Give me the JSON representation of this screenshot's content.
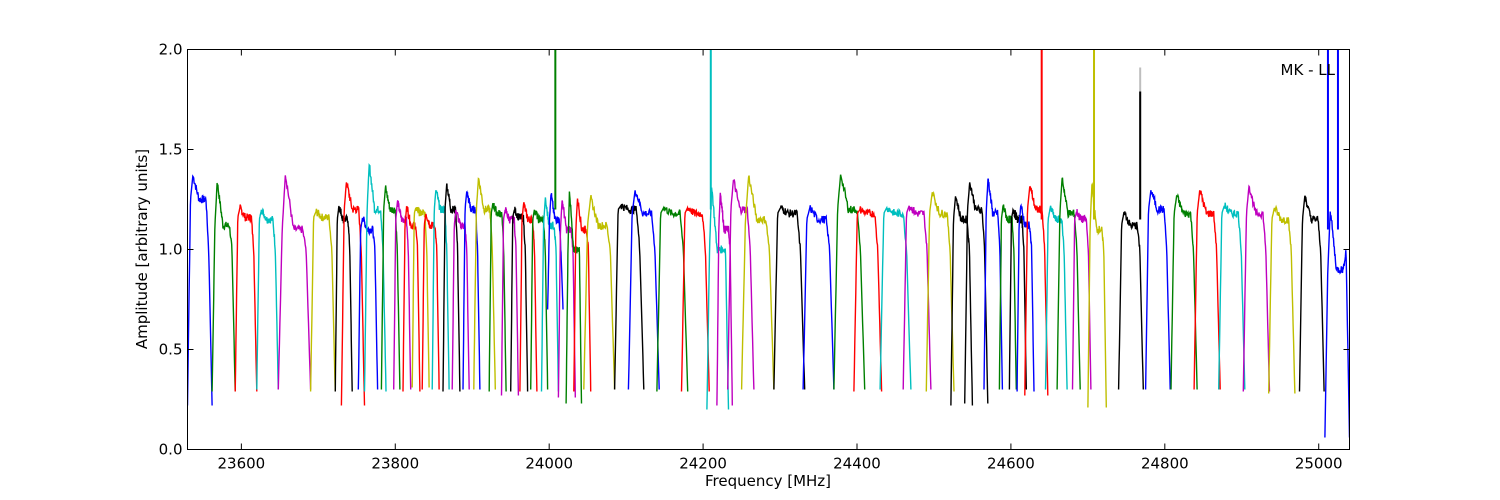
{
  "chart_data": {
    "type": "line",
    "title": "",
    "annotation": "MK - LL",
    "xlabel": "Frequency [MHz]",
    "ylabel": "Amplitude [arbitrary units]",
    "xlim": [
      23530,
      25040
    ],
    "ylim": [
      0.0,
      2.0
    ],
    "xticks": [
      23600,
      23800,
      24000,
      24200,
      24400,
      24600,
      24800,
      25000
    ],
    "yticks": [
      0.0,
      0.5,
      1.0,
      1.5,
      2.0
    ],
    "xtick_labels": [
      "23600",
      "23800",
      "24000",
      "24200",
      "24400",
      "24600",
      "24800",
      "25000"
    ],
    "ytick_labels": [
      "0.0",
      "0.5",
      "1.0",
      "1.5",
      "2.0"
    ],
    "grid": false,
    "legend": "none",
    "colors": [
      "#0000ff",
      "#008000",
      "#ff0000",
      "#00bfbf",
      "#bf00bf",
      "#bfbf00",
      "#000000"
    ],
    "segments": [
      {
        "start": 23530,
        "width": 32,
        "color": "#0000ff",
        "peak": 1.37,
        "mid": 1.25,
        "low": 0.22
      },
      {
        "start": 23562,
        "width": 30,
        "color": "#008000",
        "peak": 1.34,
        "mid": 1.12,
        "low": 0.29
      },
      {
        "start": 23592,
        "width": 28,
        "color": "#ff0000",
        "peak": 1.21,
        "mid": 1.16,
        "low": 0.29
      },
      {
        "start": 23620,
        "width": 28,
        "color": "#00bfbf",
        "peak": 1.2,
        "mid": 1.15,
        "low": 0.3
      },
      {
        "start": 23648,
        "width": 42,
        "color": "#bf00bf",
        "peak": 1.38,
        "mid": 1.1,
        "low": 0.3
      },
      {
        "start": 23690,
        "width": 32,
        "color": "#bfbf00",
        "peak": 1.19,
        "mid": 1.16,
        "low": 0.29
      },
      {
        "start": 23722,
        "width": 22,
        "color": "#000000",
        "peak": 1.22,
        "mid": 1.15,
        "low": 0.29
      },
      {
        "start": 23730,
        "width": 30,
        "color": "#ff0000",
        "peak": 1.34,
        "mid": 1.2,
        "low": 0.22
      },
      {
        "start": 23752,
        "width": 25,
        "color": "#0000ff",
        "peak": 1.16,
        "mid": 1.1,
        "low": 0.3
      },
      {
        "start": 23760,
        "width": 28,
        "color": "#00bfbf",
        "peak": 1.43,
        "mid": 1.2,
        "low": 0.29
      },
      {
        "start": 23782,
        "width": 24,
        "color": "#008000",
        "peak": 1.31,
        "mid": 1.2,
        "low": 0.3
      },
      {
        "start": 23798,
        "width": 22,
        "color": "#bf00bf",
        "peak": 1.24,
        "mid": 1.15,
        "low": 0.3
      },
      {
        "start": 23810,
        "width": 22,
        "color": "#ff0000",
        "peak": 1.22,
        "mid": 1.12,
        "low": 0.29
      },
      {
        "start": 23822,
        "width": 22,
        "color": "#bfbf00",
        "peak": 1.21,
        "mid": 1.18,
        "low": 0.31
      },
      {
        "start": 23835,
        "width": 22,
        "color": "#ff0000",
        "peak": 1.18,
        "mid": 1.12,
        "low": 0.3
      },
      {
        "start": 23848,
        "width": 22,
        "color": "#00bfbf",
        "peak": 1.3,
        "mid": 1.2,
        "low": 0.3
      },
      {
        "start": 23862,
        "width": 22,
        "color": "#000000",
        "peak": 1.33,
        "mid": 1.2,
        "low": 0.29
      },
      {
        "start": 23874,
        "width": 22,
        "color": "#bf00bf",
        "peak": 1.2,
        "mid": 1.12,
        "low": 0.3
      },
      {
        "start": 23888,
        "width": 22,
        "color": "#0000ff",
        "peak": 1.29,
        "mid": 1.2,
        "low": 0.3
      },
      {
        "start": 23902,
        "width": 28,
        "color": "#bfbf00",
        "peak": 1.36,
        "mid": 1.2,
        "low": 0.3
      },
      {
        "start": 23922,
        "width": 22,
        "color": "#008000",
        "peak": 1.23,
        "mid": 1.18,
        "low": 0.29
      },
      {
        "start": 23938,
        "width": 22,
        "color": "#bf00bf",
        "peak": 1.2,
        "mid": 1.15,
        "low": 0.27
      },
      {
        "start": 23950,
        "width": 22,
        "color": "#000000",
        "peak": 1.2,
        "mid": 1.16,
        "low": 0.29
      },
      {
        "start": 23962,
        "width": 22,
        "color": "#ff0000",
        "peak": 1.23,
        "mid": 1.15,
        "low": 0.29
      },
      {
        "start": 23976,
        "width": 22,
        "color": "#008000",
        "peak": 1.2,
        "mid": 1.15,
        "low": 0.3
      },
      {
        "start": 23990,
        "width": 22,
        "color": "#00bfbf",
        "peak": 1.25,
        "mid": 1.12,
        "low": 0.29
      },
      {
        "start": 23998,
        "width": 20,
        "color": "#0000ff",
        "peak": 1.28,
        "mid": 1.15,
        "low": 0.7
      },
      {
        "start": 24012,
        "width": 22,
        "color": "#bf00bf",
        "peak": 1.25,
        "mid": 1.1,
        "low": 0.26
      },
      {
        "start": 24022,
        "width": 20,
        "color": "#008000",
        "peak": 1.3,
        "mid": 1.0,
        "low": 0.23
      },
      {
        "start": 24032,
        "width": 22,
        "color": "#ff0000",
        "peak": 1.26,
        "mid": 1.1,
        "low": 0.29
      },
      {
        "start": 24045,
        "width": 40,
        "color": "#bfbf00",
        "peak": 1.26,
        "mid": 1.12,
        "low": 0.3
      },
      {
        "start": 24085,
        "width": 38,
        "color": "#000000",
        "peak": 1.22,
        "mid": 1.2,
        "low": 0.3
      },
      {
        "start": 24103,
        "width": 40,
        "color": "#0000ff",
        "peak": 1.3,
        "mid": 1.18,
        "low": 0.3
      },
      {
        "start": 24140,
        "width": 40,
        "color": "#008000",
        "peak": 1.21,
        "mid": 1.18,
        "low": 0.29
      },
      {
        "start": 24172,
        "width": 36,
        "color": "#ff0000",
        "peak": 1.21,
        "mid": 1.18,
        "low": 0.29
      },
      {
        "start": 24205,
        "width": 28,
        "color": "#00bfbf",
        "peak": 1.32,
        "mid": 1.0,
        "low": 0.2
      },
      {
        "start": 24218,
        "width": 20,
        "color": "#bf00bf",
        "peak": 1.29,
        "mid": 1.1,
        "low": 0.22
      },
      {
        "start": 24232,
        "width": 34,
        "color": "#bf00bf",
        "peak": 1.35,
        "mid": 1.2,
        "low": 0.3
      },
      {
        "start": 24250,
        "width": 42,
        "color": "#bfbf00",
        "peak": 1.37,
        "mid": 1.15,
        "low": 0.3
      },
      {
        "start": 24292,
        "width": 40,
        "color": "#000000",
        "peak": 1.21,
        "mid": 1.18,
        "low": 0.3
      },
      {
        "start": 24330,
        "width": 40,
        "color": "#0000ff",
        "peak": 1.21,
        "mid": 1.15,
        "low": 0.3
      },
      {
        "start": 24370,
        "width": 40,
        "color": "#008000",
        "peak": 1.38,
        "mid": 1.2,
        "low": 0.3
      },
      {
        "start": 24396,
        "width": 36,
        "color": "#ff0000",
        "peak": 1.2,
        "mid": 1.18,
        "low": 0.29
      },
      {
        "start": 24430,
        "width": 40,
        "color": "#00bfbf",
        "peak": 1.21,
        "mid": 1.18,
        "low": 0.3
      },
      {
        "start": 24460,
        "width": 36,
        "color": "#bf00bf",
        "peak": 1.22,
        "mid": 1.18,
        "low": 0.3
      },
      {
        "start": 24490,
        "width": 36,
        "color": "#bfbf00",
        "peak": 1.29,
        "mid": 1.18,
        "low": 0.29
      },
      {
        "start": 24522,
        "width": 28,
        "color": "#000000",
        "peak": 1.27,
        "mid": 1.15,
        "low": 0.22
      },
      {
        "start": 24540,
        "width": 30,
        "color": "#000000",
        "peak": 1.34,
        "mid": 1.2,
        "low": 0.23
      },
      {
        "start": 24565,
        "width": 24,
        "color": "#0000ff",
        "peak": 1.36,
        "mid": 1.18,
        "low": 0.3
      },
      {
        "start": 24585,
        "width": 22,
        "color": "#008000",
        "peak": 1.22,
        "mid": 1.15,
        "low": 0.3
      },
      {
        "start": 24598,
        "width": 22,
        "color": "#000000",
        "peak": 1.2,
        "mid": 1.15,
        "low": 0.3
      },
      {
        "start": 24608,
        "width": 22,
        "color": "#0000ff",
        "peak": 1.22,
        "mid": 1.12,
        "low": 0.29
      },
      {
        "start": 24618,
        "width": 30,
        "color": "#ff0000",
        "peak": 1.32,
        "mid": 1.2,
        "low": 0.27
      },
      {
        "start": 24645,
        "width": 28,
        "color": "#00bfbf",
        "peak": 1.21,
        "mid": 1.15,
        "low": 0.3
      },
      {
        "start": 24660,
        "width": 30,
        "color": "#008000",
        "peak": 1.36,
        "mid": 1.18,
        "low": 0.3
      },
      {
        "start": 24680,
        "width": 24,
        "color": "#bf00bf",
        "peak": 1.19,
        "mid": 1.15,
        "low": 0.3
      },
      {
        "start": 24700,
        "width": 24,
        "color": "#bfbf00",
        "peak": 1.33,
        "mid": 1.1,
        "low": 0.21
      },
      {
        "start": 24740,
        "width": 32,
        "color": "#000000",
        "peak": 1.19,
        "mid": 1.12,
        "low": 0.3
      },
      {
        "start": 24775,
        "width": 32,
        "color": "#0000ff",
        "peak": 1.3,
        "mid": 1.2,
        "low": 0.3
      },
      {
        "start": 24808,
        "width": 34,
        "color": "#008000",
        "peak": 1.27,
        "mid": 1.18,
        "low": 0.3
      },
      {
        "start": 24838,
        "width": 34,
        "color": "#ff0000",
        "peak": 1.3,
        "mid": 1.18,
        "low": 0.3
      },
      {
        "start": 24870,
        "width": 34,
        "color": "#00bfbf",
        "peak": 1.22,
        "mid": 1.18,
        "low": 0.3
      },
      {
        "start": 24902,
        "width": 34,
        "color": "#bf00bf",
        "peak": 1.32,
        "mid": 1.18,
        "low": 0.29
      },
      {
        "start": 24935,
        "width": 34,
        "color": "#bfbf00",
        "peak": 1.21,
        "mid": 1.15,
        "low": 0.28
      },
      {
        "start": 24975,
        "width": 32,
        "color": "#000000",
        "peak": 1.27,
        "mid": 1.15,
        "low": 0.29
      },
      {
        "start": 25008,
        "width": 32,
        "color": "#0000ff",
        "peak": 1.2,
        "mid": 0.9,
        "low": 0.06
      }
    ],
    "spikes": [
      {
        "x": 24008,
        "color": "#008000",
        "top": 2.0,
        "base": 1.2
      },
      {
        "x": 24210,
        "color": "#00bfbf",
        "top": 2.0,
        "base": 1.2
      },
      {
        "x": 24640,
        "color": "#ff0000",
        "top": 2.0,
        "base": 1.15
      },
      {
        "x": 24708,
        "color": "#bfbf00",
        "top": 2.0,
        "base": 1.15
      },
      {
        "x": 24768,
        "color": "#bebebe",
        "top": 1.91,
        "base": 1.15
      },
      {
        "x": 24768,
        "color": "#000000",
        "top": 1.79,
        "base": 1.15
      },
      {
        "x": 25012,
        "color": "#0000ff",
        "top": 2.0,
        "base": 1.1
      },
      {
        "x": 25025,
        "color": "#0000ff",
        "top": 2.0,
        "base": 1.1
      }
    ]
  }
}
